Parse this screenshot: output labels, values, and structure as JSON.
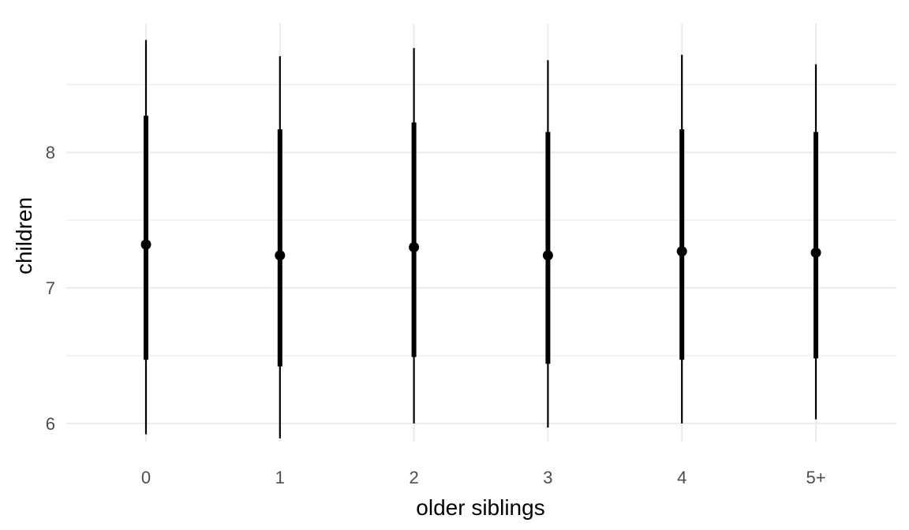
{
  "chart_data": {
    "type": "pointrange",
    "title": "",
    "xlabel": "older siblings",
    "ylabel": "children",
    "categories": [
      "0",
      "1",
      "2",
      "3",
      "4",
      "5+"
    ],
    "ylim": [
      5.8,
      8.9
    ],
    "y_major_ticks": [
      6,
      7,
      8
    ],
    "y_minor_gridlines": [
      6.5,
      7.5,
      8.5
    ],
    "grid": true,
    "legend": "none",
    "series": [
      {
        "point": [
          7.32,
          7.24,
          7.3,
          7.24,
          7.27,
          7.26
        ],
        "inner_low": [
          6.47,
          6.42,
          6.49,
          6.44,
          6.47,
          6.48
        ],
        "inner_high": [
          8.27,
          8.17,
          8.22,
          8.15,
          8.17,
          8.15
        ],
        "outer_low": [
          5.92,
          5.89,
          6.0,
          5.97,
          6.0,
          6.03
        ],
        "outer_high": [
          8.83,
          8.71,
          8.77,
          8.68,
          8.72,
          8.65
        ]
      }
    ],
    "colors": {
      "marks": "#000000",
      "grid": "#ebebeb",
      "tick_text": "#4d4d4d",
      "title_text": "#000000"
    }
  }
}
